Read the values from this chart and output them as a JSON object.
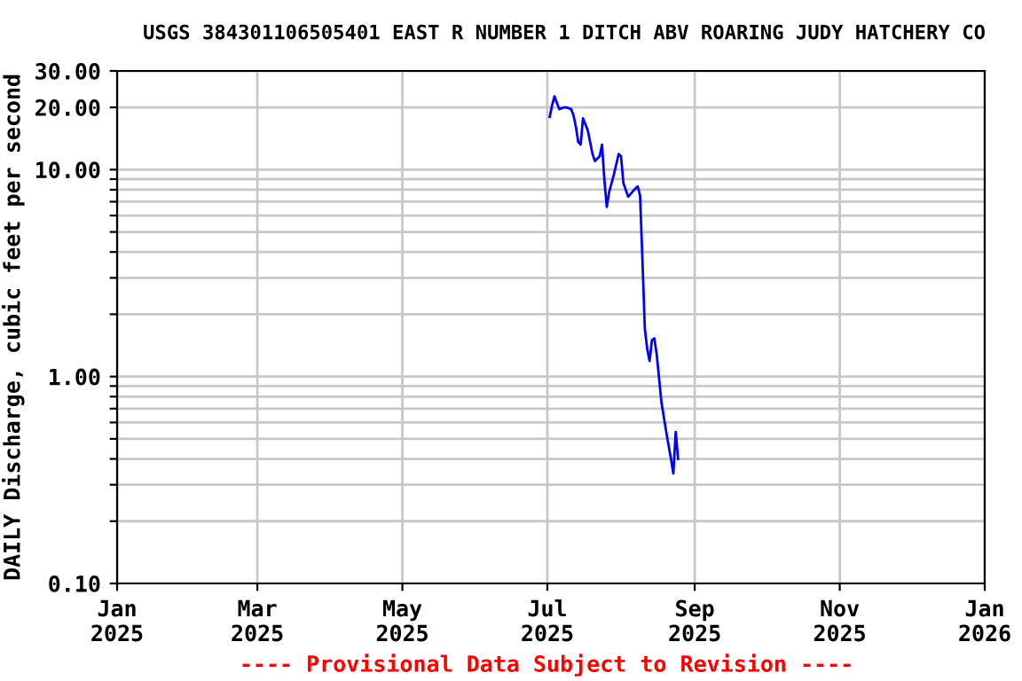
{
  "chart_data": {
    "type": "line",
    "title": "USGS 384301106505401 EAST R NUMBER 1 DITCH ABV ROARING JUDY HATCHERY CO",
    "ylabel": "DAILY Discharge, cubic feet per second",
    "annotations": [
      "---- Provisional Data Subject to Revision ----"
    ],
    "log": "y",
    "grid": true,
    "xlim": [
      "2025-01-01",
      "2026-01-01"
    ],
    "xticks": [
      {
        "value": "2025-01-01",
        "label": "Jan\n2025"
      },
      {
        "value": "2025-03-01",
        "label": "Mar\n2025"
      },
      {
        "value": "2025-05-01",
        "label": "May\n2025"
      },
      {
        "value": "2025-07-01",
        "label": "Jul\n2025"
      },
      {
        "value": "2025-09-01",
        "label": "Sep\n2025"
      },
      {
        "value": "2025-11-01",
        "label": "Nov\n2025"
      },
      {
        "value": "2026-01-01",
        "label": "Jan\n2026"
      }
    ],
    "ylim": [
      0.1,
      30
    ],
    "yticks": [
      {
        "value": 0.1,
        "label": "0.10"
      },
      {
        "value": 0.2,
        "label": null
      },
      {
        "value": 0.3,
        "label": null
      },
      {
        "value": 0.4,
        "label": null
      },
      {
        "value": 0.5,
        "label": null
      },
      {
        "value": 0.6,
        "label": null
      },
      {
        "value": 0.7,
        "label": null
      },
      {
        "value": 0.8,
        "label": null
      },
      {
        "value": 0.9,
        "label": null
      },
      {
        "value": 1,
        "label": "1.00"
      },
      {
        "value": 2,
        "label": null
      },
      {
        "value": 3,
        "label": null
      },
      {
        "value": 4,
        "label": null
      },
      {
        "value": 5,
        "label": null
      },
      {
        "value": 6,
        "label": null
      },
      {
        "value": 7,
        "label": null
      },
      {
        "value": 8,
        "label": null
      },
      {
        "value": 9,
        "label": null
      },
      {
        "value": 10,
        "label": "10.00"
      },
      {
        "value": 20,
        "label": "20.00"
      },
      {
        "value": 30,
        "label": "30.00"
      }
    ],
    "x": [
      "2025-07-02",
      "2025-07-03",
      "2025-07-04",
      "2025-07-06",
      "2025-07-08",
      "2025-07-09",
      "2025-07-11",
      "2025-07-12",
      "2025-07-13",
      "2025-07-14",
      "2025-07-15",
      "2025-07-16",
      "2025-07-18",
      "2025-07-19",
      "2025-07-20",
      "2025-07-21",
      "2025-07-23",
      "2025-07-24",
      "2025-07-25",
      "2025-07-26",
      "2025-07-27",
      "2025-07-29",
      "2025-07-31",
      "2025-08-01",
      "2025-08-02",
      "2025-08-04",
      "2025-08-07",
      "2025-08-08",
      "2025-08-09",
      "2025-08-10",
      "2025-08-11",
      "2025-08-12",
      "2025-08-13",
      "2025-08-14",
      "2025-08-15",
      "2025-08-16",
      "2025-08-18",
      "2025-08-20",
      "2025-08-22",
      "2025-08-23",
      "2025-08-24",
      "2025-08-25"
    ],
    "series": [
      {
        "color": "#0000ff",
        "values": [
          18,
          20.5,
          22.6,
          19.6,
          20,
          20,
          19.6,
          18.3,
          16.1,
          13.6,
          13.2,
          17.7,
          15.5,
          13.6,
          11.9,
          11,
          11.6,
          13.2,
          8.9,
          6.6,
          7.8,
          9.5,
          11.9,
          11.6,
          8.6,
          7.4,
          8.1,
          8.3,
          7.5,
          3.66,
          1.71,
          1.36,
          1.19,
          1.5,
          1.53,
          1.28,
          0.75,
          0.54,
          0.4,
          0.34,
          0.54,
          0.4
        ]
      }
    ]
  }
}
